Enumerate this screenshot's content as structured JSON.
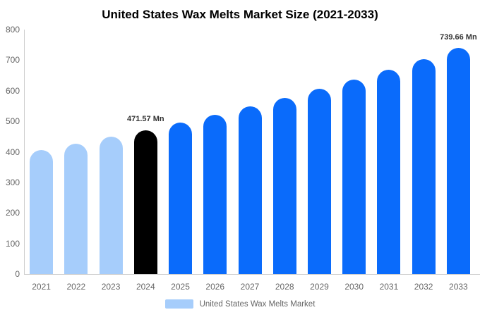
{
  "title": "United States Wax Melts Market Size (2021-2033)",
  "legend": {
    "label": "United States Wax Melts Market",
    "swatch_color": "#a6cdfb"
  },
  "colors": {
    "bar_historical": "#a6cdfb",
    "bar_base_year": "#000000",
    "bar_forecast": "#0a6bfb",
    "axis_line": "#cccccc",
    "tick_text": "#666666",
    "annotation_text": "#333333",
    "title_text": "#000000"
  },
  "chart_data": {
    "type": "bar",
    "title": "United States Wax Melts Market Size (2021-2033)",
    "xlabel": "",
    "ylabel": "",
    "categories": [
      "2021",
      "2022",
      "2023",
      "2024",
      "2025",
      "2026",
      "2027",
      "2028",
      "2029",
      "2030",
      "2031",
      "2032",
      "2033"
    ],
    "values": [
      406,
      427,
      449,
      471.57,
      496,
      521,
      548,
      576,
      606,
      637,
      669,
      704,
      739.66
    ],
    "bar_roles": [
      "historical",
      "historical",
      "historical",
      "base_year",
      "forecast",
      "forecast",
      "forecast",
      "forecast",
      "forecast",
      "forecast",
      "forecast",
      "forecast",
      "forecast"
    ],
    "palette": {
      "historical": "#a6cdfb",
      "base_year": "#000000",
      "forecast": "#0a6bfb"
    },
    "annotations": [
      {
        "category": "2024",
        "label": "471.57 Mn"
      },
      {
        "category": "2033",
        "label": "739.66 Mn"
      }
    ],
    "ylim": [
      0,
      800
    ],
    "yticks": [
      0,
      100,
      200,
      300,
      400,
      500,
      600,
      700,
      800
    ],
    "grid": false,
    "legend_position": "bottom",
    "legend_entries": [
      "United States Wax Melts Market"
    ],
    "unit": "Mn"
  }
}
